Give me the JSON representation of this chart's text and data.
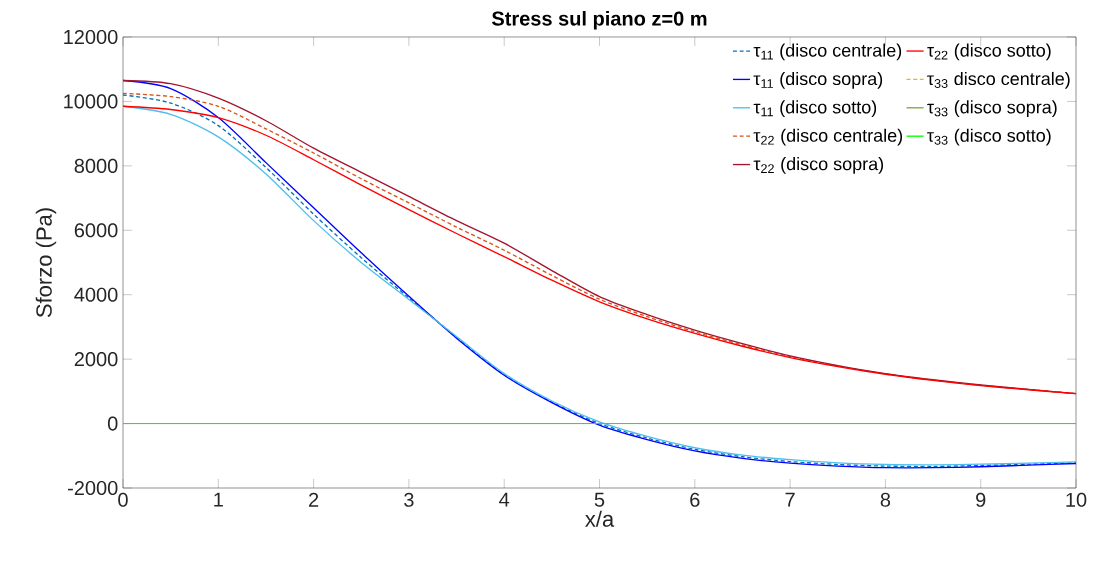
{
  "chart_data": {
    "type": "line",
    "title": "Stress sul piano z=0 m",
    "xlabel": "x/a",
    "ylabel": "Sforzo (Pa)",
    "x": [
      0,
      0.5,
      1,
      1.5,
      2,
      2.5,
      3,
      3.5,
      4,
      4.5,
      5,
      5.5,
      6,
      6.5,
      7,
      7.5,
      8,
      8.5,
      9,
      9.5,
      10
    ],
    "xlim": [
      0,
      10
    ],
    "xticks": [
      0,
      1,
      2,
      3,
      4,
      5,
      6,
      7,
      8,
      9,
      10
    ],
    "ylim": [
      -2000,
      12000
    ],
    "yticks": [
      -2000,
      0,
      2000,
      4000,
      6000,
      8000,
      10000,
      12000
    ],
    "grid": false,
    "legend": "top right",
    "marker": "none",
    "series": [
      {
        "name": "τ$_{11}$ (disco centrale)",
        "color": "#0072bd",
        "line_style": "dashed",
        "values": [
          10200,
          9950,
          9250,
          7950,
          6500,
          5150,
          3900,
          2680,
          1520,
          670,
          0,
          -450,
          -800,
          -1030,
          -1180,
          -1270,
          -1320,
          -1330,
          -1300,
          -1260,
          -1220
        ]
      },
      {
        "name": "τ$_{11}$ (disco sopra)",
        "color": "#0000ff",
        "line_style": "solid",
        "values": [
          10650,
          10400,
          9500,
          8100,
          6700,
          5300,
          3950,
          2650,
          1500,
          650,
          -50,
          -500,
          -850,
          -1080,
          -1230,
          -1320,
          -1370,
          -1370,
          -1340,
          -1290,
          -1240
        ]
      },
      {
        "name": "τ$_{11}$ (disco sotto)",
        "color": "#4dbeee",
        "line_style": "solid",
        "values": [
          9850,
          9600,
          8900,
          7750,
          6300,
          5000,
          3850,
          2700,
          1550,
          700,
          50,
          -400,
          -750,
          -980,
          -1120,
          -1220,
          -1270,
          -1280,
          -1260,
          -1230,
          -1190
        ]
      },
      {
        "name": "τ$_{22}$ (disco centrale)",
        "color": "#d95319",
        "line_style": "dashed",
        "values": [
          10250,
          10150,
          9850,
          9150,
          8400,
          7600,
          6850,
          6100,
          5380,
          4600,
          3860,
          3320,
          2850,
          2440,
          2080,
          1790,
          1540,
          1350,
          1190,
          1060,
          930
        ]
      },
      {
        "name": "τ$_{22}$ (disco sopra)",
        "color": "#a2142f",
        "line_style": "solid",
        "values": [
          10650,
          10550,
          10100,
          9400,
          8550,
          7800,
          7050,
          6300,
          5600,
          4750,
          3940,
          3380,
          2900,
          2480,
          2100,
          1800,
          1550,
          1360,
          1200,
          1060,
          930
        ]
      },
      {
        "name": "τ$_{22}$ (disco sotto)",
        "color": "#ff0000",
        "line_style": "solid",
        "values": [
          9850,
          9750,
          9500,
          8950,
          8190,
          7400,
          6640,
          5900,
          5180,
          4450,
          3780,
          3250,
          2800,
          2400,
          2050,
          1770,
          1530,
          1340,
          1180,
          1050,
          930
        ]
      },
      {
        "name": "τ$_{33}$ disco centrale)",
        "color": "#edb120",
        "line_style": "dashed",
        "values": [
          null,
          null,
          null,
          null,
          null,
          null,
          null,
          null,
          null,
          null,
          null,
          null,
          null,
          null,
          null,
          null,
          null,
          null,
          null,
          null,
          null
        ]
      },
      {
        "name": "τ$_{33}$ (disco sopra)",
        "color": "#77ac30",
        "line_style": "solid",
        "values": [
          null,
          null,
          null,
          null,
          null,
          null,
          null,
          null,
          null,
          null,
          null,
          null,
          null,
          null,
          null,
          null,
          null,
          null,
          null,
          null,
          null
        ]
      },
      {
        "name": "τ$_{33}$ (disco sotto)",
        "color": "#00ff00",
        "line_style": "solid",
        "values": [
          0,
          0,
          0,
          0,
          0,
          0,
          0,
          0,
          0,
          0,
          0,
          0,
          0,
          0,
          0,
          0,
          0,
          0,
          0,
          0,
          0
        ]
      }
    ]
  }
}
